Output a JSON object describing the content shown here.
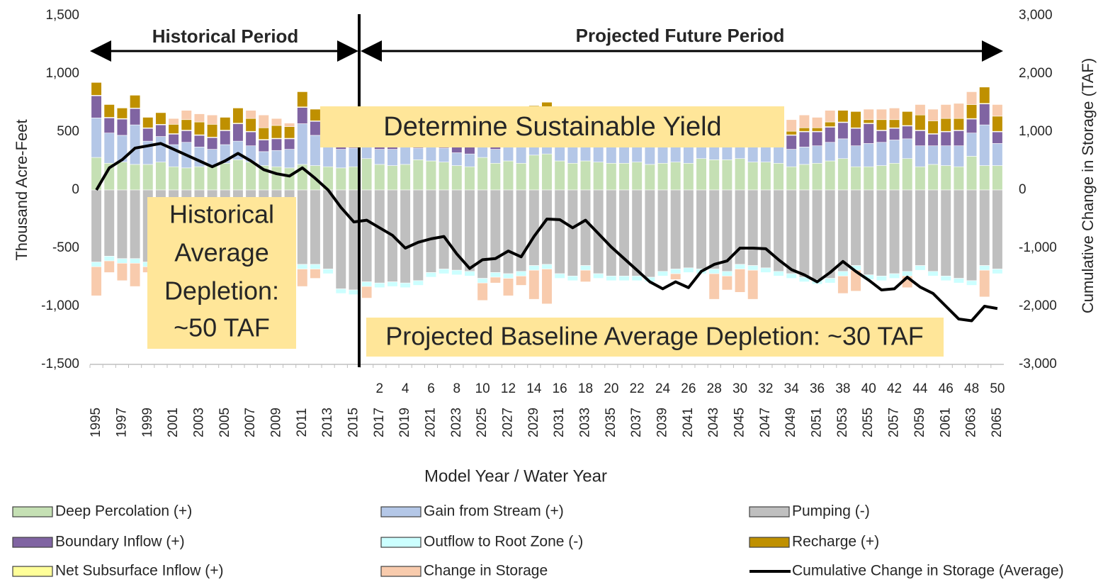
{
  "chart_data": {
    "type": "stacked-bar-line",
    "ylabel": "Thousand Acre-Feet",
    "y2label": "Cumulative Change in Storage (TAF)",
    "xlabel": "Model Year / Water Year",
    "annotations": {
      "historical_period": "Historical Period",
      "future_period": "Projected Future Period",
      "sustainable": "Determine Sustainable Yield",
      "historical_depletion": [
        "Historical",
        "Average",
        "Depletion:",
        "~50 TAF"
      ],
      "projected_depletion": "Projected Baseline Average Depletion: ~30 TAF"
    },
    "categories": [
      "1995",
      null,
      "1997",
      null,
      "1999",
      null,
      "2001",
      null,
      "2003",
      null,
      "2005",
      null,
      "2007",
      null,
      "2009",
      null,
      "2011",
      null,
      "2013",
      null,
      "2015",
      null,
      "2017",
      null,
      "2019",
      null,
      "2021",
      null,
      "2023",
      null,
      "2025",
      null,
      "2027",
      null,
      "2029",
      null,
      "2031",
      null,
      "2033",
      null,
      "2035",
      null,
      "2037",
      null,
      "2039",
      null,
      "2041",
      null,
      "2043",
      null,
      "2045",
      null,
      "2047",
      null,
      "2049",
      null,
      "2051",
      null,
      "2053",
      null,
      "2055",
      null,
      "2057",
      null,
      "2059",
      null,
      "2061",
      null,
      "2063",
      null,
      "2065"
    ],
    "model_years": [
      null,
      null,
      null,
      null,
      null,
      null,
      null,
      null,
      null,
      null,
      null,
      null,
      null,
      null,
      null,
      null,
      null,
      null,
      null,
      null,
      null,
      null,
      2,
      null,
      4,
      null,
      6,
      null,
      8,
      null,
      10,
      null,
      12,
      null,
      14,
      null,
      16,
      null,
      18,
      null,
      20,
      null,
      22,
      null,
      24,
      null,
      26,
      null,
      28,
      null,
      30,
      null,
      32,
      null,
      34,
      null,
      36,
      null,
      38,
      null,
      40,
      null,
      42,
      null,
      44,
      null,
      46,
      null,
      48,
      null,
      50
    ],
    "ylim": [
      -1500,
      1500
    ],
    "yticks": [
      {
        "value": -1500,
        "label": "-1,500"
      },
      {
        "value": -1000,
        "label": "-1,000"
      },
      -500,
      0,
      500,
      {
        "value": 1000,
        "label": "1,000"
      },
      {
        "value": 1500,
        "label": "1,500"
      }
    ],
    "y2lim": [
      -3000,
      3000
    ],
    "y2ticks": [
      {
        "value": -3000,
        "label": "-3,000"
      },
      {
        "value": -2000,
        "label": "-2,000"
      },
      {
        "value": -1000,
        "label": "-1,000"
      },
      0,
      {
        "value": 1000,
        "label": "1,000"
      },
      {
        "value": 2000,
        "label": "2,000"
      },
      {
        "value": 3000,
        "label": "3,000"
      }
    ],
    "series": [
      {
        "name": "Deep Percolation (+)",
        "color": "#c5e0b4",
        "values": [
          280,
          230,
          240,
          220,
          220,
          240,
          200,
          190,
          200,
          210,
          230,
          260,
          240,
          210,
          200,
          190,
          220,
          210,
          200,
          190,
          200,
          270,
          220,
          210,
          220,
          260,
          250,
          240,
          210,
          200,
          280,
          230,
          250,
          230,
          300,
          310,
          250,
          230,
          250,
          240,
          230,
          230,
          240,
          220,
          230,
          240,
          230,
          270,
          260,
          260,
          270,
          240,
          240,
          230,
          200,
          220,
          230,
          250,
          270,
          200,
          200,
          210,
          230,
          270,
          200,
          220,
          210,
          200,
          290,
          210,
          210
        ]
      },
      {
        "name": "Boundary Inflow (+)",
        "color": "#8064a2",
        "values": [
          190,
          130,
          140,
          140,
          110,
          100,
          90,
          100,
          100,
          100,
          120,
          150,
          120,
          100,
          100,
          90,
          140,
          120,
          110,
          100,
          100,
          100,
          100,
          100,
          110,
          100,
          100,
          110,
          100,
          100,
          110,
          150,
          120,
          130,
          170,
          160,
          100,
          100,
          110,
          100,
          100,
          100,
          100,
          100,
          110,
          100,
          120,
          130,
          110,
          110,
          150,
          100,
          100,
          100,
          120,
          130,
          120,
          130,
          140,
          150,
          170,
          100,
          100,
          110,
          130,
          100,
          120,
          130,
          120,
          180,
          100
        ]
      },
      {
        "name": "Net Subsurface Inflow (+)",
        "color": "#ffff99",
        "values": [
          5,
          5,
          5,
          5,
          5,
          5,
          5,
          5,
          5,
          5,
          5,
          5,
          5,
          5,
          5,
          5,
          5,
          5,
          5,
          5,
          5,
          5,
          5,
          5,
          5,
          5,
          5,
          5,
          5,
          5,
          5,
          5,
          5,
          5,
          5,
          5,
          5,
          5,
          5,
          5,
          5,
          5,
          5,
          5,
          5,
          5,
          5,
          5,
          5,
          5,
          5,
          5,
          5,
          5,
          5,
          5,
          5,
          5,
          5,
          5,
          5,
          5,
          5,
          5,
          5,
          5,
          5,
          5,
          5,
          5,
          5
        ]
      },
      {
        "name": "Gain from Stream (+)",
        "color": "#b4c7e7",
        "values": [
          340,
          260,
          230,
          340,
          200,
          220,
          190,
          220,
          170,
          140,
          160,
          160,
          140,
          120,
          140,
          160,
          350,
          260,
          190,
          160,
          160,
          150,
          130,
          140,
          150,
          100,
          130,
          120,
          110,
          110,
          130,
          120,
          150,
          160,
          120,
          130,
          150,
          140,
          120,
          130,
          140,
          150,
          160,
          150,
          140,
          150,
          160,
          170,
          150,
          160,
          160,
          170,
          160,
          140,
          150,
          150,
          150,
          160,
          170,
          180,
          200,
          200,
          200,
          170,
          180,
          160,
          170,
          180,
          200,
          350,
          190
        ]
      },
      {
        "name": "Outflow to Root Zone (-)",
        "color": "#ccffff",
        "values": [
          -40,
          -40,
          -40,
          -40,
          -40,
          -40,
          -40,
          -40,
          -40,
          -40,
          -40,
          -40,
          -40,
          -40,
          -40,
          -40,
          -40,
          -40,
          -40,
          -40,
          -40,
          -40,
          -40,
          -40,
          -40,
          -40,
          -40,
          -40,
          -40,
          -40,
          -40,
          -40,
          -40,
          -40,
          -40,
          -40,
          -40,
          -40,
          -40,
          -40,
          -40,
          -40,
          -40,
          -40,
          -40,
          -40,
          -40,
          -40,
          -40,
          -40,
          -40,
          -40,
          -40,
          -40,
          -40,
          -40,
          -40,
          -40,
          -40,
          -40,
          -40,
          -40,
          -40,
          -40,
          -40,
          -40,
          -40,
          -40,
          -40,
          -40,
          -40
        ]
      },
      {
        "name": "Change in Storage",
        "color": "#f8cbad",
        "values": [
          -250,
          -100,
          -150,
          -200,
          -50,
          -50,
          50,
          80,
          70,
          80,
          -50,
          -80,
          70,
          110,
          60,
          30,
          -150,
          -80,
          100,
          150,
          200,
          -100,
          100,
          100,
          100,
          100,
          150,
          120,
          100,
          100,
          -150,
          -50,
          -150,
          -80,
          -250,
          -300,
          30,
          50,
          -100,
          60,
          60,
          60,
          60,
          60,
          70,
          -50,
          60,
          70,
          -220,
          -120,
          -200,
          -250,
          50,
          60,
          100,
          110,
          90,
          100,
          -150,
          -180,
          90,
          90,
          100,
          -100,
          90,
          100,
          120,
          130,
          110,
          -230,
          100
        ]
      },
      {
        "name": "Pumping (-)",
        "color": "#bfbfbf",
        "values": [
          -620,
          -570,
          -590,
          -590,
          -620,
          -640,
          -620,
          -640,
          -650,
          -650,
          -680,
          -680,
          -670,
          -680,
          -680,
          -660,
          -640,
          -640,
          -680,
          -850,
          -860,
          -790,
          -800,
          -790,
          -800,
          -780,
          -710,
          -680,
          -690,
          -700,
          -760,
          -710,
          -720,
          -700,
          -650,
          -640,
          -720,
          -740,
          -650,
          -720,
          -740,
          -740,
          -740,
          -750,
          -700,
          -680,
          -670,
          -680,
          -680,
          -700,
          -640,
          -650,
          -670,
          -700,
          -720,
          -750,
          -770,
          -760,
          -700,
          -650,
          -730,
          -740,
          -720,
          -700,
          -650,
          -700,
          -740,
          -760,
          -780,
          -650,
          -680
        ]
      },
      {
        "name": "Recharge (+)",
        "color": "#bf9000",
        "values": [
          110,
          110,
          90,
          110,
          90,
          100,
          80,
          90,
          110,
          110,
          110,
          130,
          110,
          100,
          110,
          100,
          130,
          100,
          90,
          80,
          40,
          50,
          50,
          50,
          40,
          40,
          30,
          30,
          30,
          40,
          40,
          120,
          100,
          110,
          130,
          150,
          20,
          20,
          110,
          30,
          30,
          30,
          30,
          30,
          30,
          100,
          30,
          30,
          130,
          100,
          120,
          140,
          30,
          30,
          30,
          30,
          30,
          40,
          100,
          140,
          30,
          90,
          70,
          120,
          130,
          110,
          110,
          100,
          120,
          140,
          130
        ]
      },
      {
        "name": "Cumulative Change in Storage (Average)",
        "color": "#000000",
        "axis": "y2",
        "values": [
          0,
          380,
          520,
          720,
          760,
          800,
          700,
          600,
          500,
          400,
          500,
          630,
          500,
          350,
          280,
          240,
          380,
          200,
          0,
          -300,
          -550,
          -520,
          -650,
          -780,
          -1000,
          -900,
          -840,
          -800,
          -1100,
          -1350,
          -1200,
          -1180,
          -1050,
          -1150,
          -800,
          -500,
          -510,
          -650,
          -520,
          -750,
          -980,
          -1180,
          -1380,
          -1580,
          -1700,
          -1580,
          -1680,
          -1400,
          -1280,
          -1220,
          -1000,
          -1000,
          -1010,
          -1200,
          -1370,
          -1460,
          -1580,
          -1420,
          -1230,
          -1400,
          -1550,
          -1720,
          -1700,
          -1500,
          -1670,
          -1780,
          -2000,
          -2220,
          -2250,
          -2000,
          -2040
        ]
      }
    ]
  }
}
